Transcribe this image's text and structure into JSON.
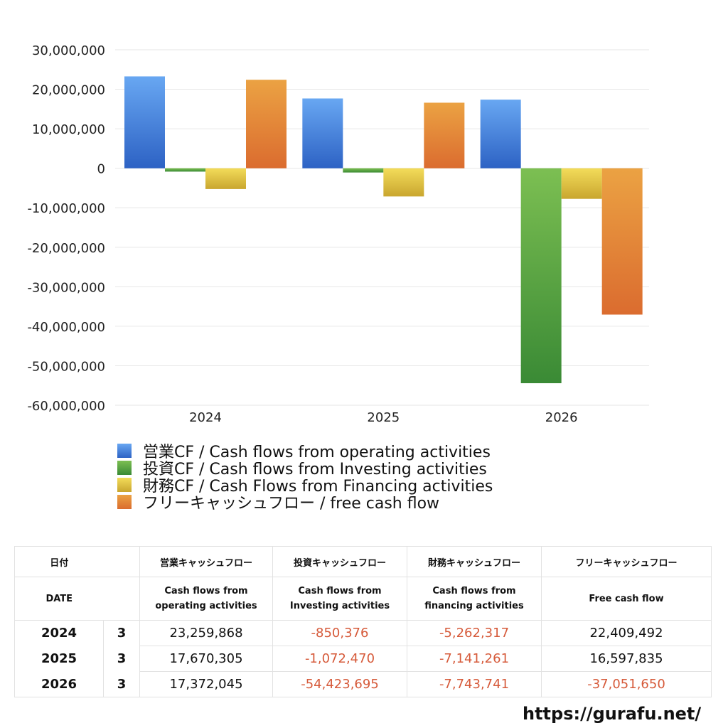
{
  "chart_data": {
    "type": "bar",
    "categories": [
      "2024",
      "2025",
      "2026"
    ],
    "ylim": [
      -60000000,
      30000000
    ],
    "yticks": [
      30000000,
      20000000,
      10000000,
      0,
      -10000000,
      -20000000,
      -30000000,
      -40000000,
      -50000000,
      -60000000
    ],
    "ytick_labels": [
      "30,000,000",
      "20,000,000",
      "10,000,000",
      "0",
      "-10,000,000",
      "-20,000,000",
      "-30,000,000",
      "-40,000,000",
      "-50,000,000",
      "-60,000,000"
    ],
    "grid": true,
    "legend_position": "bottom-left",
    "series": [
      {
        "name": "営業CF / Cash flows from operating activities",
        "values": [
          23259868,
          17670305,
          17372045
        ],
        "color_top": "#68a7f2",
        "color_bottom": "#2d62c4"
      },
      {
        "name": "投資CF / Cash flows from Investing activities",
        "values": [
          -850376,
          -1072470,
          -54423695
        ],
        "color_top": "#7cbf52",
        "color_bottom": "#3a8a35"
      },
      {
        "name": "財務CF / Cash Flows from Financing activities",
        "values": [
          -5262317,
          -7141261,
          -7743741
        ],
        "color_top": "#f3dc5a",
        "color_bottom": "#c9a62f"
      },
      {
        "name": "フリーキャッシュフロー / free cash flow",
        "values": [
          22409492,
          16597835,
          -37051650
        ],
        "color_top": "#eba243",
        "color_bottom": "#db6c2f"
      }
    ]
  },
  "table": {
    "header_ja": [
      "日付",
      "",
      "営業キャッシュフロー",
      "投資キャッシュフロー",
      "財務キャッシュフロー",
      "フリーキャッシュフロー"
    ],
    "header_en": [
      [
        "DATE",
        ""
      ],
      [
        "",
        ""
      ],
      [
        "Cash flows from",
        "operating activities"
      ],
      [
        "Cash flows from",
        "Investing activities"
      ],
      [
        "Cash flows from",
        "financing activities"
      ],
      [
        "Free cash flow",
        ""
      ]
    ],
    "rows": [
      {
        "year": "2024",
        "month": "3",
        "operating": "23,259,868",
        "investing": "-850,376",
        "financing": "-5,262,317",
        "free": "22,409,492"
      },
      {
        "year": "2025",
        "month": "3",
        "operating": "17,670,305",
        "investing": "-1,072,470",
        "financing": "-7,141,261",
        "free": "16,597,835"
      },
      {
        "year": "2026",
        "month": "3",
        "operating": "17,372,045",
        "investing": "-54,423,695",
        "financing": "-7,743,741",
        "free": "-37,051,650"
      }
    ]
  },
  "credit": "https://gurafu.net/",
  "colors": {
    "negative_text": "#d65a3a",
    "grid": "#e6e6e6"
  }
}
